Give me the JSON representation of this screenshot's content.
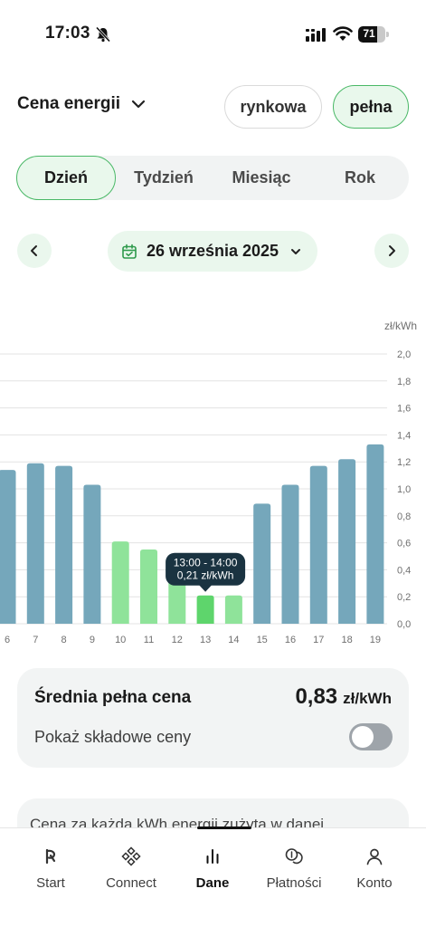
{
  "status_bar": {
    "time": "17:03",
    "battery": "71",
    "battery_level": 0.71
  },
  "header": {
    "title": "Cena energii",
    "toggle_options": [
      "rynkowa",
      "pełna"
    ],
    "selected_option": "pełna"
  },
  "period_tabs": [
    "Dzień",
    "Tydzień",
    "Miesiąc",
    "Rok"
  ],
  "active_period": "Dzień",
  "date_nav": {
    "date": "26 września 2025"
  },
  "chart_data": {
    "type": "bar",
    "unit_label": "zł/kWh",
    "categories": [
      "6",
      "7",
      "8",
      "9",
      "10",
      "11",
      "12",
      "13",
      "14",
      "15",
      "16",
      "17",
      "18",
      "19"
    ],
    "values": [
      1.14,
      1.19,
      1.17,
      1.03,
      0.61,
      0.55,
      0.35,
      0.21,
      0.21,
      0.89,
      1.03,
      1.17,
      1.22,
      1.33
    ],
    "low_price_hours": [
      "10",
      "11",
      "12",
      "13",
      "14"
    ],
    "selected_hour": "13",
    "ylim": [
      0,
      2.0
    ],
    "y_ticks": [
      "0,0",
      "0,2",
      "0,4",
      "0,6",
      "0,8",
      "1,0",
      "1,2",
      "1,4",
      "1,6",
      "1,8",
      "2,0"
    ],
    "grid": true,
    "colors": {
      "high": "#75a7bb",
      "low": "#8fe39a",
      "selected": "#5ed56c",
      "tooltip": "#1a3341"
    },
    "tooltip": {
      "time": "13:00 - 14:00",
      "value": "0,21 zł/kWh"
    }
  },
  "summary": {
    "label": "Średnia pełna cena",
    "value": "0,83",
    "unit": "zł/kWh",
    "toggle_label": "Pokaż składowe ceny",
    "toggle_on": false
  },
  "info_text": "Cena za każdą kWh energii zużytą w danej",
  "tabbar": {
    "items": [
      {
        "label": "Start",
        "icon": "start-icon"
      },
      {
        "label": "Connect",
        "icon": "connect-icon"
      },
      {
        "label": "Dane",
        "icon": "chart-bars-icon"
      },
      {
        "label": "Płatności",
        "icon": "coins-icon"
      },
      {
        "label": "Konto",
        "icon": "person-icon"
      }
    ],
    "active": "Dane"
  },
  "colors": {
    "accent": "#49b866",
    "accent_bg": "#e9f8ec",
    "card_bg": "#f2f4f4"
  }
}
